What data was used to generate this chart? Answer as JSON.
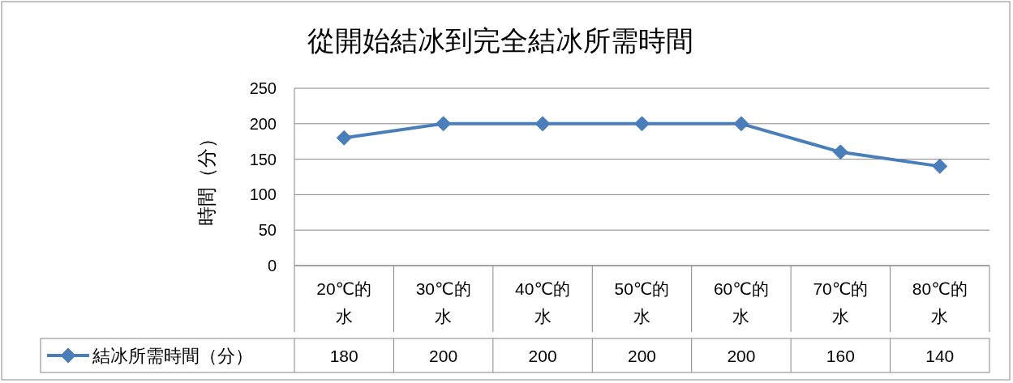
{
  "chart_data": {
    "type": "line",
    "title": "從開始結冰到完全結冰所需時間",
    "ylabel": "時間（分）",
    "categories": [
      "20℃的水",
      "30℃的水",
      "40℃的水",
      "50℃的水",
      "60℃的水",
      "70℃的水",
      "80℃的水"
    ],
    "series": [
      {
        "name": "結冰所需時間（分）",
        "color": "#4a7ebb",
        "values": [
          180,
          200,
          200,
          200,
          200,
          160,
          140
        ]
      }
    ],
    "ylim": [
      0,
      250
    ],
    "yticks": [
      0,
      50,
      100,
      150,
      200,
      250
    ],
    "grid": "y",
    "marker": "diamond",
    "line_style": "solid",
    "data_labels": true,
    "legend": "bottom left"
  }
}
